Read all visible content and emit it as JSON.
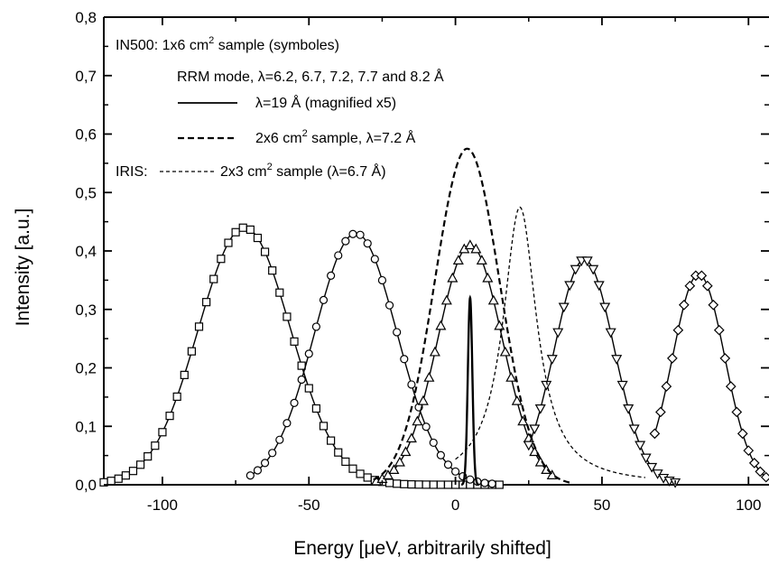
{
  "chart_data": {
    "type": "line",
    "title": "",
    "xlabel": "Energy [μeV, arbitrarily shifted]",
    "ylabel": "Intensity [a.u.]",
    "xlim": [
      -120,
      107
    ],
    "ylim": [
      0.0,
      0.8
    ],
    "xticks": [
      -100,
      -50,
      0,
      50,
      100
    ],
    "xtick_labels": [
      "-100",
      "-50",
      "0",
      "50",
      "100"
    ],
    "yticks": [
      0.0,
      0.1,
      0.2,
      0.3,
      0.4,
      0.5,
      0.6,
      0.7,
      0.8
    ],
    "ytick_labels": [
      "0,0",
      "0,1",
      "0,2",
      "0,3",
      "0,4",
      "0,5",
      "0,6",
      "0,7",
      "0,8"
    ],
    "grid": false,
    "legend": {
      "placement": "top-left",
      "lines": [
        {
          "text_main": "IN500: 1x6 cm",
          "sup": "2",
          "text_after": " sample  (symboles)"
        },
        {
          "text_main": "RRM mode, λ=6.2, 6.7, 7.2, 7.7 and 8.2 Å"
        },
        {
          "text_main": "λ=19 Å (magnified x5)"
        },
        {
          "text_main": "2x6 cm",
          "sup": "2",
          "text_after": " sample, λ=7.2 Å"
        },
        {
          "text_pre": "IRIS:",
          "text_main": "2x3 cm",
          "sup": "2",
          "text_after": " sample (λ=6.7 Å)"
        }
      ]
    },
    "series": [
      {
        "marker": "square",
        "style": "solid",
        "center": -72,
        "fwhm": 37,
        "peak": 0.44,
        "x_range": [
          -120,
          15
        ],
        "marker_step": 2.5
      },
      {
        "marker": "circle",
        "style": "solid",
        "center": -34,
        "fwhm": 33,
        "peak": 0.43,
        "x_range": [
          -70,
          13
        ],
        "marker_step": 2.5
      },
      {
        "marker": "triangle-up",
        "style": "solid",
        "center": 5,
        "fwhm": 26,
        "peak": 0.41,
        "x_range": [
          -27,
          33
        ],
        "marker_step": 2
      },
      {
        "marker": "triangle-down",
        "style": "solid",
        "center": 44,
        "fwhm": 24,
        "peak": 0.385,
        "x_range": [
          25,
          75
        ],
        "marker_step": 2
      },
      {
        "marker": "diamond",
        "style": "solid",
        "center": 83,
        "fwhm": 21,
        "peak": 0.36,
        "x_range": [
          68,
          107
        ],
        "marker_step": 2
      },
      {
        "marker": "none",
        "style": "solid",
        "center": 5,
        "fwhm": 1.8,
        "peak": 0.32,
        "x_range": [
          2,
          8
        ]
      },
      {
        "marker": "none",
        "style": "dashed",
        "center": 4,
        "fwhm": 26,
        "peak": 0.575,
        "x_range": [
          -28,
          40
        ]
      },
      {
        "marker": "none",
        "style": "short-dashed",
        "center": 22,
        "fwhm": 14,
        "peak": 0.475,
        "lorentz": true,
        "x_range": [
          0,
          65
        ]
      }
    ]
  }
}
